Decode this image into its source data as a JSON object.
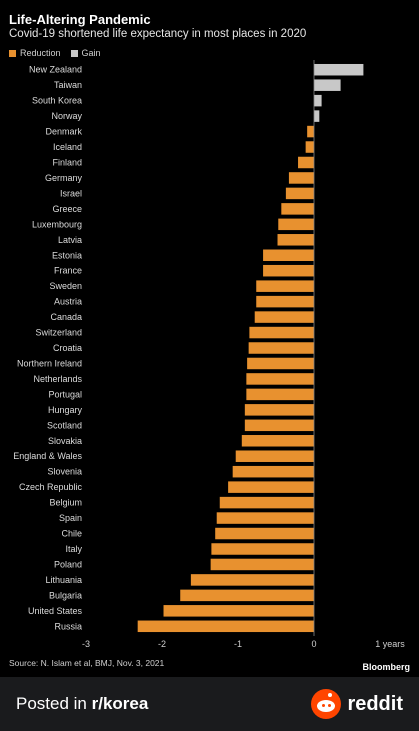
{
  "chart_data": {
    "type": "bar",
    "orientation": "horizontal",
    "title": "Life-Altering Pandemic",
    "subtitle": "Covid-19 shortened life expectancy in most places in 2020",
    "legend": [
      {
        "label": "Reduction",
        "color": "#e8912f"
      },
      {
        "label": "Gain",
        "color": "#c8c8c8"
      }
    ],
    "legend_position": "top-left",
    "xlim": [
      -3,
      1
    ],
    "x_ticks": [
      {
        "value": -3,
        "label": "-3"
      },
      {
        "value": -2,
        "label": "-2"
      },
      {
        "value": -1,
        "label": "-1"
      },
      {
        "value": 0,
        "label": "0"
      },
      {
        "value": 1,
        "label": "1 years"
      }
    ],
    "grid": false,
    "categories": [
      "New Zealand",
      "Taiwan",
      "South Korea",
      "Norway",
      "Denmark",
      "Iceland",
      "Finland",
      "Germany",
      "Israel",
      "Greece",
      "Luxembourg",
      "Latvia",
      "Estonia",
      "France",
      "Sweden",
      "Austria",
      "Canada",
      "Switzerland",
      "Croatia",
      "Northern Ireland",
      "Netherlands",
      "Portugal",
      "Hungary",
      "Scotland",
      "Slovakia",
      "England & Wales",
      "Slovenia",
      "Czech Republic",
      "Belgium",
      "Spain",
      "Chile",
      "Italy",
      "Poland",
      "Lithuania",
      "Bulgaria",
      "United States",
      "Russia"
    ],
    "values": [
      0.65,
      0.35,
      0.1,
      0.07,
      -0.09,
      -0.11,
      -0.21,
      -0.33,
      -0.37,
      -0.43,
      -0.47,
      -0.48,
      -0.67,
      -0.67,
      -0.76,
      -0.76,
      -0.78,
      -0.85,
      -0.86,
      -0.88,
      -0.89,
      -0.89,
      -0.91,
      -0.91,
      -0.95,
      -1.03,
      -1.07,
      -1.13,
      -1.24,
      -1.28,
      -1.3,
      -1.35,
      -1.36,
      -1.62,
      -1.76,
      -1.98,
      -2.32
    ]
  },
  "source": "Source: N. Islam et al, BMJ, Nov. 3, 2021",
  "brand": "Bloomberg",
  "footer": {
    "posted_prefix": "Posted in ",
    "subreddit": "r/korea",
    "reddit_label": "reddit"
  },
  "colors": {
    "reduction": "#e8912f",
    "gain": "#c8c8c8",
    "background": "#000000",
    "footer_bg": "#1a1b1d",
    "reddit_orange": "#ff4500"
  }
}
